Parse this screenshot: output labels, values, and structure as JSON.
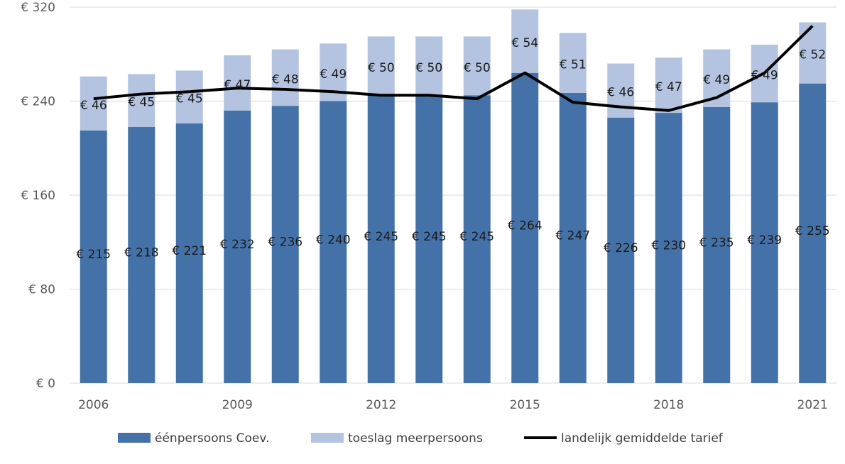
{
  "chart_data": {
    "type": "bar",
    "stacked": true,
    "categories": [
      "2006",
      "2007",
      "2008",
      "2009",
      "2010",
      "2011",
      "2012",
      "2013",
      "2014",
      "2015",
      "2016",
      "2017",
      "2018",
      "2019",
      "2020",
      "2021"
    ],
    "x_tick_labels": [
      "2006",
      "",
      "",
      "2009",
      "",
      "",
      "2012",
      "",
      "",
      "2015",
      "",
      "",
      "2018",
      "",
      "",
      "2021"
    ],
    "ylim": [
      0,
      320
    ],
    "y_ticks": [
      0,
      80,
      160,
      240,
      320
    ],
    "y_tick_labels": [
      "€ 0",
      "€ 80",
      "€ 160",
      "€ 240",
      "€ 320"
    ],
    "grid": true,
    "legend_position": "bottom",
    "series": [
      {
        "name": "éénpersoons Coev.",
        "type": "bar",
        "color": "#4472a8",
        "values": [
          215,
          218,
          221,
          232,
          236,
          240,
          245,
          245,
          245,
          264,
          247,
          226,
          230,
          235,
          239,
          255
        ],
        "labels": [
          "€ 215",
          "€ 218",
          "€ 221",
          "€ 232",
          "€ 236",
          "€ 240",
          "€ 245",
          "€ 245",
          "€ 245",
          "€ 264",
          "€ 247",
          "€ 226",
          "€ 230",
          "€ 235",
          "€ 239",
          "€ 255"
        ]
      },
      {
        "name": "toeslag meerpersoons",
        "type": "bar",
        "color": "#b4c4e0",
        "values": [
          46,
          45,
          45,
          47,
          48,
          49,
          50,
          50,
          50,
          54,
          51,
          46,
          47,
          49,
          49,
          52
        ],
        "labels": [
          "€ 46",
          "€ 45",
          "€ 45",
          "€ 47",
          "€ 48",
          "€ 49",
          "€ 50",
          "€ 50",
          "€ 50",
          "€ 54",
          "€ 51",
          "€ 46",
          "€ 47",
          "€ 49",
          "€ 49",
          "€ 52"
        ]
      },
      {
        "name": "landelijk gemiddelde tarief",
        "type": "line",
        "color": "#000000",
        "values": [
          242,
          246,
          248,
          251,
          250,
          248,
          245,
          245,
          242,
          264,
          239,
          235,
          232,
          243,
          264,
          304
        ]
      }
    ]
  }
}
